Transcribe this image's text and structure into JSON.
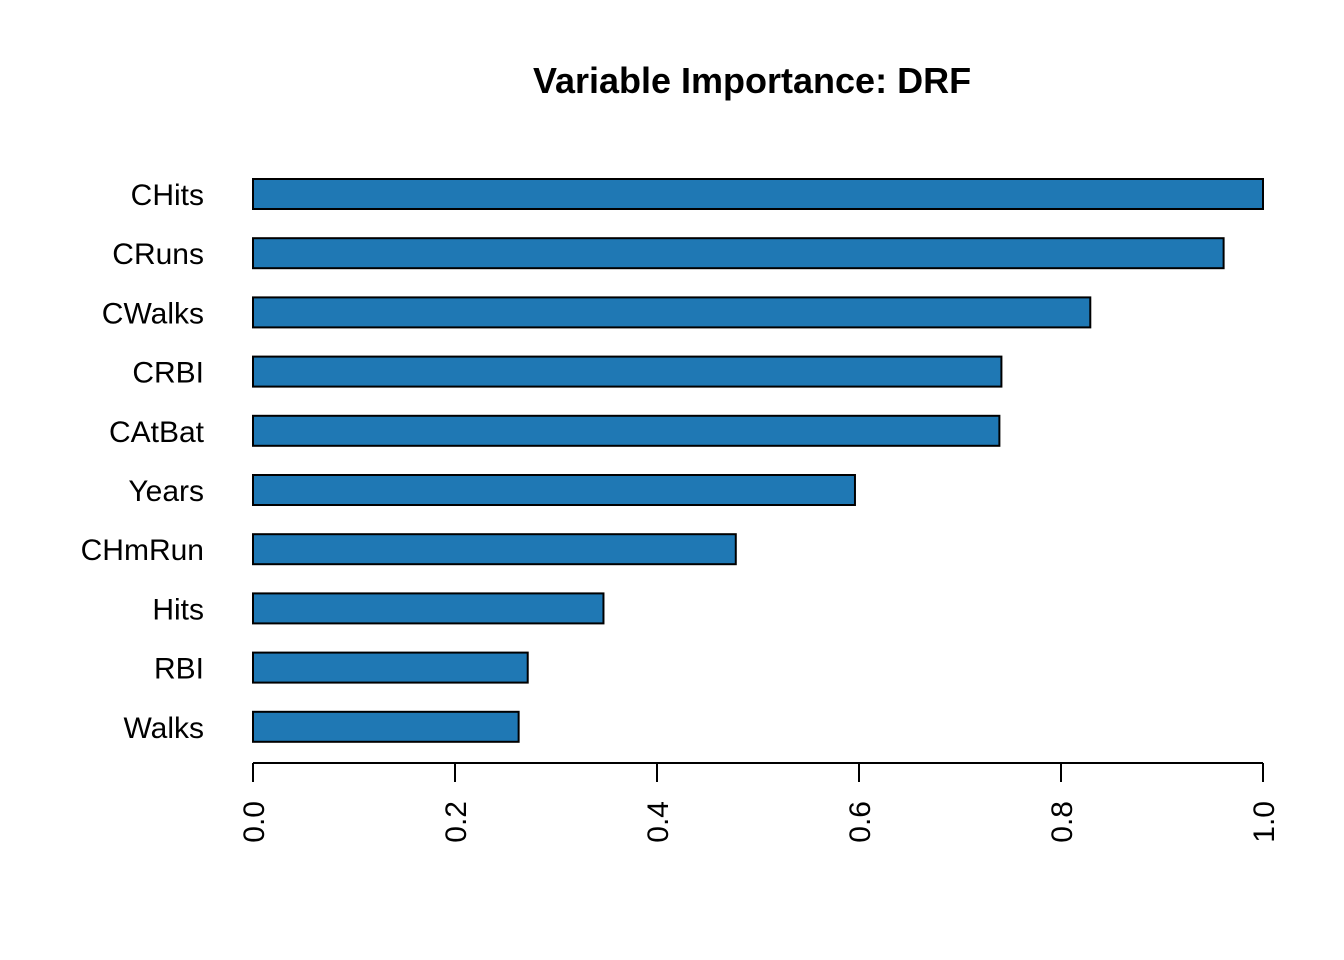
{
  "chart_data": {
    "type": "bar",
    "orientation": "horizontal",
    "title": "Variable Importance: DRF",
    "categories": [
      "CHits",
      "CRuns",
      "CWalks",
      "CRBI",
      "CAtBat",
      "Years",
      "CHmRun",
      "Hits",
      "RBI",
      "Walks"
    ],
    "values": [
      1.0,
      0.961,
      0.829,
      0.741,
      0.739,
      0.596,
      0.478,
      0.347,
      0.272,
      0.263
    ],
    "xlabel": "",
    "ylabel": "",
    "xlim": [
      0,
      1
    ],
    "x_ticks": [
      "0.0",
      "0.2",
      "0.4",
      "0.6",
      "0.8",
      "1.0"
    ],
    "bar_color": "#1f78b4",
    "grid": false
  }
}
